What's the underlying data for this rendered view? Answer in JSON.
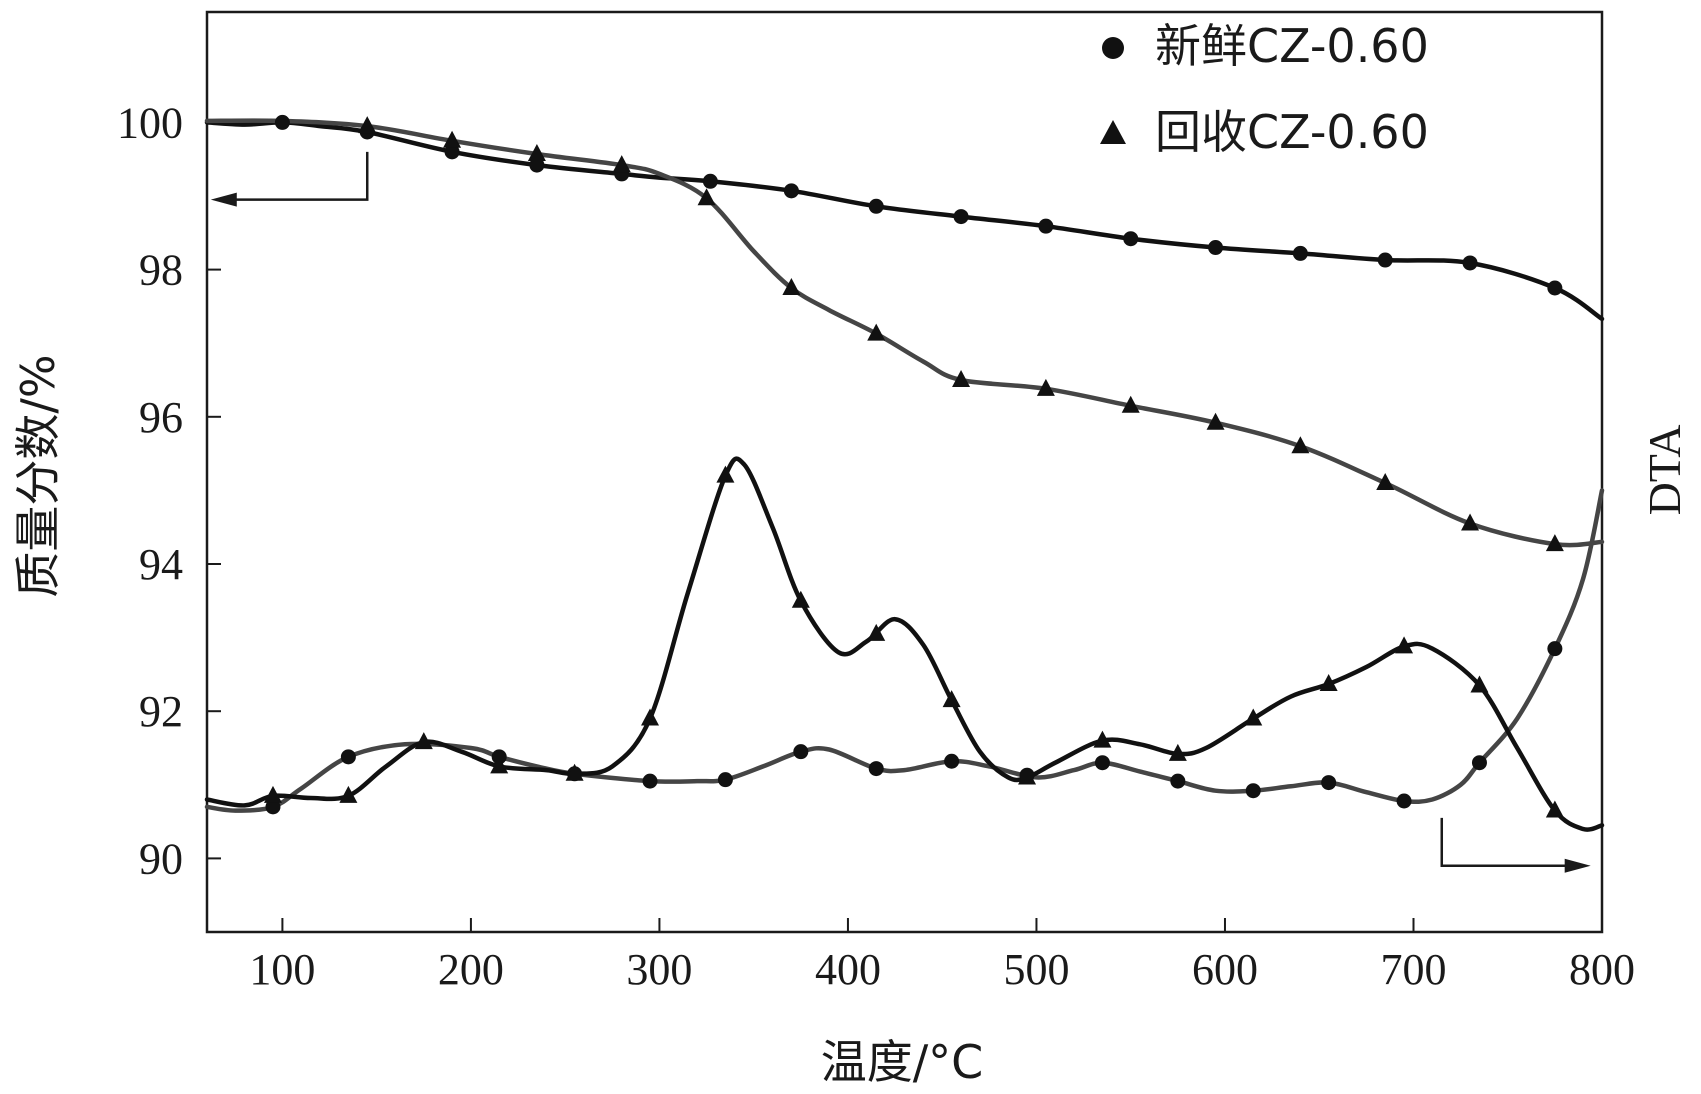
{
  "chart_data": {
    "type": "line",
    "xlabel": "温度/°C",
    "ylabel": "质量分数/%",
    "y2label": "DTA",
    "xlim": [
      60,
      800
    ],
    "ylim": [
      89,
      101.5
    ],
    "xticks": [
      100,
      200,
      300,
      400,
      500,
      600,
      700,
      800
    ],
    "yticks": [
      90,
      92,
      94,
      96,
      98,
      100
    ],
    "legend_position": "top-right",
    "legend": [
      {
        "marker": "circle",
        "label": "新鲜CZ-0.60"
      },
      {
        "marker": "triangle",
        "label": "回收CZ-0.60"
      }
    ],
    "series": [
      {
        "name": "新鲜CZ-0.60",
        "kind": "TG",
        "marker": "circle",
        "color": "#111111",
        "x": [
          60,
          80,
          100,
          120,
          145,
          190,
          235,
          280,
          300,
          327,
          370,
          415,
          460,
          505,
          550,
          595,
          640,
          685,
          730,
          775,
          800
        ],
        "y": [
          100.0,
          99.97,
          100.0,
          99.95,
          99.87,
          99.6,
          99.42,
          99.3,
          99.25,
          99.2,
          99.07,
          98.86,
          98.72,
          98.59,
          98.42,
          98.3,
          98.22,
          98.13,
          98.09,
          97.75,
          97.33
        ],
        "markers_x": [
          100,
          145,
          190,
          235,
          280,
          327,
          370,
          415,
          460,
          505,
          550,
          595,
          640,
          685,
          730,
          775
        ]
      },
      {
        "name": "回收CZ-0.60",
        "kind": "TG",
        "marker": "triangle",
        "color": "#454545",
        "x": [
          60,
          100,
          145,
          190,
          235,
          280,
          300,
          325,
          350,
          370,
          390,
          415,
          440,
          460,
          505,
          550,
          595,
          640,
          685,
          730,
          775,
          800
        ],
        "y": [
          100.02,
          100.02,
          99.95,
          99.75,
          99.57,
          99.42,
          99.3,
          98.97,
          98.25,
          97.75,
          97.45,
          97.13,
          96.75,
          96.5,
          96.38,
          96.15,
          95.92,
          95.6,
          95.1,
          94.55,
          94.27,
          94.3
        ],
        "markers_x": [
          145,
          190,
          235,
          280,
          325,
          370,
          415,
          460,
          505,
          550,
          595,
          640,
          685,
          730,
          775
        ]
      },
      {
        "name": "新鲜CZ-0.60",
        "kind": "DTA",
        "marker": "circle",
        "color": "#454545",
        "x": [
          60,
          75,
          95,
          110,
          135,
          165,
          200,
          215,
          235,
          255,
          295,
          320,
          335,
          355,
          375,
          390,
          415,
          430,
          455,
          475,
          500,
          520,
          535,
          555,
          575,
          595,
          615,
          635,
          655,
          675,
          695,
          710,
          725,
          735,
          755,
          775,
          790,
          800
        ],
        "y": [
          90.7,
          90.65,
          90.7,
          90.95,
          91.38,
          91.55,
          91.5,
          91.38,
          91.25,
          91.15,
          91.05,
          91.05,
          91.07,
          91.25,
          91.45,
          91.48,
          91.22,
          91.2,
          91.32,
          91.25,
          91.1,
          91.2,
          91.3,
          91.18,
          91.05,
          90.92,
          90.92,
          90.98,
          91.03,
          90.9,
          90.78,
          90.8,
          91.0,
          91.3,
          91.9,
          92.85,
          93.8,
          95.0
        ],
        "markers_x": [
          95,
          135,
          215,
          255,
          295,
          335,
          375,
          415,
          455,
          495,
          535,
          575,
          615,
          655,
          695,
          735,
          775
        ]
      },
      {
        "name": "回收CZ-0.60",
        "kind": "DTA",
        "marker": "triangle",
        "color": "#111111",
        "x": [
          60,
          80,
          95,
          115,
          135,
          155,
          175,
          195,
          215,
          240,
          255,
          275,
          295,
          315,
          335,
          345,
          360,
          375,
          395,
          410,
          425,
          440,
          455,
          470,
          485,
          495,
          510,
          535,
          555,
          575,
          590,
          615,
          635,
          655,
          675,
          695,
          710,
          735,
          755,
          775,
          790,
          800
        ],
        "y": [
          90.8,
          90.72,
          90.85,
          90.82,
          90.85,
          91.25,
          91.58,
          91.45,
          91.25,
          91.2,
          91.15,
          91.25,
          91.9,
          93.6,
          95.2,
          95.35,
          94.5,
          93.5,
          92.8,
          92.95,
          93.25,
          92.9,
          92.15,
          91.45,
          91.1,
          91.1,
          91.3,
          91.6,
          91.55,
          91.42,
          91.5,
          91.9,
          92.2,
          92.37,
          92.6,
          92.88,
          92.85,
          92.35,
          91.5,
          90.65,
          90.4,
          90.45
        ],
        "markers_x": [
          95,
          135,
          175,
          215,
          255,
          295,
          335,
          375,
          415,
          455,
          495,
          535,
          575,
          615,
          655,
          695,
          735,
          775
        ]
      }
    ]
  }
}
